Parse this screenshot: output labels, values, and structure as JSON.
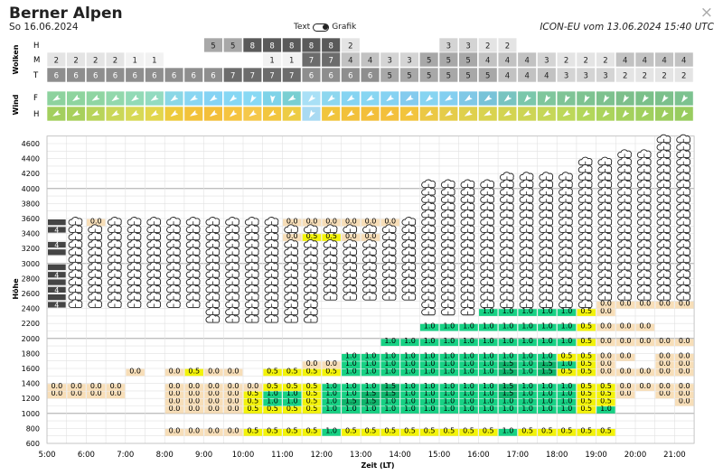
{
  "header": {
    "title": "Berner Alpen",
    "date": "So 16.06.2024",
    "toggle_text": "Text",
    "toggle_grafik": "Grafik",
    "model_info": "ICON-EU vom 13.06.2024 15:40 UTC",
    "close_symbol": "×"
  },
  "clouds": {
    "section_label": "Wolken",
    "row_labels": [
      "H",
      "M",
      "T"
    ],
    "H": [
      null,
      null,
      null,
      null,
      null,
      null,
      null,
      null,
      5,
      5,
      8,
      8,
      8,
      8,
      8,
      2,
      null,
      null,
      null,
      null,
      3,
      3,
      2,
      2,
      null,
      null,
      null,
      null,
      null,
      null,
      null,
      null,
      null
    ],
    "M": [
      2,
      2,
      2,
      2,
      1,
      1,
      null,
      null,
      null,
      null,
      null,
      1,
      1,
      7,
      7,
      4,
      4,
      3,
      3,
      5,
      5,
      5,
      4,
      4,
      4,
      3,
      2,
      2,
      2,
      4,
      4,
      4,
      4
    ],
    "T": [
      6,
      6,
      6,
      6,
      6,
      6,
      6,
      6,
      6,
      7,
      7,
      7,
      7,
      6,
      6,
      6,
      6,
      5,
      5,
      5,
      5,
      5,
      5,
      4,
      4,
      4,
      3,
      3,
      3,
      2,
      2,
      2,
      2
    ]
  },
  "wind": {
    "section_label": "Wind",
    "row_labels": [
      "F",
      "H"
    ]
  },
  "main": {
    "y_axis_label": "Höhe",
    "x_axis_label": "Zeit (LT)",
    "y_ticks": [
      600,
      800,
      1000,
      1200,
      1400,
      1600,
      1800,
      2000,
      2200,
      2400,
      2600,
      2800,
      3000,
      3200,
      3400,
      3600,
      3800,
      4000,
      4200,
      4400,
      4600
    ],
    "x_ticks": [
      "5:00",
      "6:00",
      "7:00",
      "8:00",
      "9:00",
      "10:00",
      "11:00",
      "12:00",
      "13:00",
      "14:00",
      "15:00",
      "16:00",
      "17:00",
      "18:00",
      "19:00",
      "20:00",
      "21:00"
    ],
    "topo_label": "4",
    "lift_values_note": "cell values in m/s",
    "lift_rows": {
      "3500": {
        "12": "0.0",
        "13": "0.0",
        "14": "0.0",
        "15": "0.0",
        "16": "0.0",
        "17": "0.0",
        "2": "0.0"
      },
      "3300": {
        "12": "0.0",
        "13": "0.5",
        "14": "0.5",
        "15": "0.0",
        "16": "0.0"
      },
      "2400": {
        "29": "0.0",
        "30": "0.0",
        "31": "0.0",
        "32": "0.0",
        "28": "0.0"
      },
      "2300": {
        "22": "1.0",
        "23": "1.0",
        "24": "1.0",
        "25": "1.0",
        "26": "1.0",
        "27": "0.5",
        "28": "0.0"
      },
      "2100": {
        "19": "1.0",
        "20": "1.0",
        "21": "1.0",
        "22": "1.0",
        "23": "1.0",
        "24": "1.0",
        "25": "1.0",
        "26": "1.0",
        "27": "0.5",
        "28": "0.0",
        "29": "0.0",
        "30": "0.0"
      },
      "1900": {
        "17": "1.0",
        "18": "1.0",
        "19": "1.0",
        "20": "1.0",
        "21": "1.0",
        "22": "1.0",
        "23": "1.0",
        "24": "1.0",
        "25": "1.0",
        "26": "1.0",
        "27": "0.5",
        "28": "0.0",
        "29": "0.0",
        "30": "0.0",
        "31": "0.0",
        "32": "0.0"
      },
      "1700": {
        "15": "1.0",
        "16": "1.0",
        "17": "1.0",
        "18": "1.0",
        "19": "1.0",
        "20": "1.0",
        "21": "1.0",
        "22": "1.0",
        "23": "1.0",
        "24": "1.0",
        "25": "1.0",
        "26": "0.5",
        "27": "0.5",
        "28": "0.0",
        "29": "0.0",
        "31": "0.0",
        "32": "0.0"
      },
      "1600": {
        "13": "0.0",
        "14": "0.0",
        "15": "1.0",
        "16": "1.0",
        "17": "1.0",
        "18": "1.0",
        "19": "1.0",
        "20": "1.0",
        "21": "1.0",
        "22": "1.0",
        "23": "1.5",
        "24": "1.0",
        "25": "1.5",
        "26": "1.0",
        "27": "0.5",
        "28": "0.0",
        "31": "0.0",
        "32": "0.0"
      },
      "1500": {
        "4": "0.0",
        "6": "0.0",
        "7": "0.5",
        "8": "0.0",
        "9": "0.0",
        "11": "0.5",
        "12": "0.5",
        "13": "0.5",
        "14": "0.5",
        "15": "1.0",
        "16": "1.0",
        "17": "1.0",
        "18": "1.0",
        "19": "1.0",
        "20": "1.0",
        "21": "1.0",
        "22": "1.0",
        "23": "1.5",
        "24": "1.0",
        "25": "1.5",
        "26": "0.5",
        "27": "0.5",
        "28": "0.0",
        "29": "0.0",
        "30": "0.0",
        "31": "0.0",
        "32": "0.0"
      },
      "1300": {
        "0": "0.0",
        "1": "0.0",
        "2": "0.0",
        "3": "0.0",
        "6": "0.0",
        "7": "0.0",
        "8": "0.0",
        "9": "0.0",
        "10": "0.0",
        "11": "0.5",
        "12": "0.5",
        "13": "0.5",
        "14": "1.0",
        "15": "1.0",
        "16": "1.0",
        "17": "1.5",
        "18": "1.0",
        "19": "1.0",
        "20": "1.0",
        "21": "1.0",
        "22": "1.0",
        "23": "1.5",
        "24": "1.0",
        "25": "1.0",
        "26": "1.0",
        "27": "0.5",
        "28": "0.5",
        "29": "0.0",
        "30": "0.0",
        "31": "0.0",
        "32": "0.0"
      },
      "1200": {
        "0": "0.0",
        "1": "0.0",
        "2": "0.0",
        "3": "0.0",
        "6": "0.0",
        "7": "0.0",
        "8": "0.0",
        "9": "0.0",
        "10": "0.5",
        "11": "1.0",
        "12": "1.0",
        "13": "0.5",
        "14": "1.0",
        "15": "1.0",
        "16": "1.5",
        "17": "1.5",
        "18": "1.0",
        "19": "1.0",
        "20": "1.0",
        "21": "1.0",
        "22": "1.0",
        "23": "1.5",
        "24": "1.0",
        "25": "1.0",
        "26": "1.0",
        "27": "0.5",
        "28": "0.5",
        "29": "0.0",
        "31": "0.0",
        "32": "0.0"
      },
      "1100": {
        "6": "0.0",
        "7": "0.0",
        "8": "0.0",
        "9": "0.0",
        "10": "0.5",
        "11": "1.0",
        "12": "1.0",
        "13": "0.5",
        "14": "1.0",
        "15": "1.5",
        "16": "1.5",
        "17": "1.0",
        "18": "1.0",
        "19": "1.0",
        "20": "1.0",
        "21": "1.0",
        "22": "1.0",
        "23": "1.0",
        "24": "1.0",
        "25": "1.0",
        "26": "1.0",
        "27": "0.5",
        "28": "0.5",
        "32": "0.0"
      },
      "1000": {
        "6": "0.0",
        "7": "0.0",
        "8": "0.0",
        "9": "0.0",
        "10": "0.5",
        "11": "0.5",
        "12": "0.5",
        "13": "0.5",
        "14": "1.0",
        "15": "1.0",
        "16": "1.0",
        "17": "1.0",
        "18": "1.0",
        "19": "1.0",
        "20": "1.0",
        "21": "1.0",
        "22": "1.0",
        "23": "1.0",
        "24": "1.0",
        "25": "1.0",
        "26": "1.0",
        "27": "0.5",
        "28": "1.0"
      },
      "700": {
        "6": "0.0",
        "7": "0.0",
        "8": "0.0",
        "9": "0.0",
        "10": "0.5",
        "11": "0.5",
        "12": "0.5",
        "13": "0.5",
        "14": "1.0",
        "15": "0.5",
        "16": "0.5",
        "17": "0.5",
        "18": "0.5",
        "19": "0.5",
        "20": "0.5",
        "21": "0.5",
        "22": "0.5",
        "23": "1.0",
        "24": "0.5",
        "25": "0.5",
        "26": "0.5",
        "27": "0.5",
        "28": "0.5"
      }
    }
  },
  "colors": {
    "lift_0": "#f7deb8",
    "lift_05": "#f3f30a",
    "lift_1": "#17d184",
    "lift_15": "#0fb56c",
    "cloud_dark": "#6c6c6c",
    "wind_f_bg": "#89d6f2",
    "wind_h_bg": "#f3c23a"
  }
}
